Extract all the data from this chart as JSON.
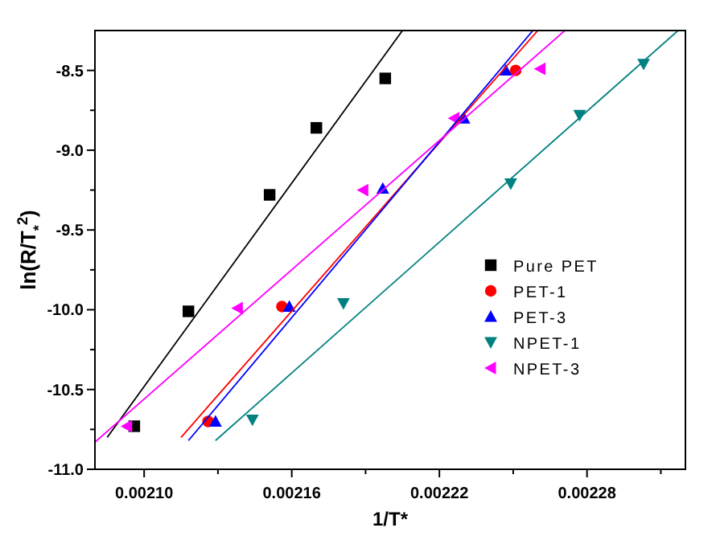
{
  "chart_data": {
    "type": "scatter",
    "xlabel": "1/T*",
    "ylabel": "ln(R/T$_{*}$$^{2}$)",
    "xlim": [
      0.00208,
      0.00232
    ],
    "ylim": [
      -11,
      -8.25
    ],
    "xticks": [
      {
        "value": 0.0021,
        "label": "0.00210"
      },
      {
        "value": 0.00213,
        "label": null
      },
      {
        "value": 0.00216,
        "label": "0.00216"
      },
      {
        "value": 0.00219,
        "label": null
      },
      {
        "value": 0.00222,
        "label": "0.00222"
      },
      {
        "value": 0.00225,
        "label": null
      },
      {
        "value": 0.00228,
        "label": "0.00228"
      },
      {
        "value": 0.00231,
        "label": null
      }
    ],
    "yticks": [
      {
        "value": -11,
        "label": "-11.0"
      },
      {
        "value": -10.75,
        "label": null
      },
      {
        "value": -10.5,
        "label": "-10.5"
      },
      {
        "value": -10.25,
        "label": null
      },
      {
        "value": -10,
        "label": "-10.0"
      },
      {
        "value": -9.75,
        "label": null
      },
      {
        "value": -9.5,
        "label": "-9.5"
      },
      {
        "value": -9.25,
        "label": null
      },
      {
        "value": -9,
        "label": "-9.0"
      },
      {
        "value": -8.75,
        "label": null
      },
      {
        "value": -8.5,
        "label": "-8.5"
      }
    ],
    "grid": false,
    "legend": "right",
    "series": [
      {
        "name": "Pure PET",
        "color": "#000000",
        "marker": "square",
        "x": [
          0.002096,
          0.002118,
          0.002151,
          0.00217,
          0.002198
        ],
        "values": [
          -10.73,
          -10.01,
          -9.28,
          -8.86,
          -8.55
        ]
      },
      {
        "name": "PET-1",
        "color": "#ff0000",
        "marker": "circle",
        "x": [
          0.002126,
          0.002156,
          0.002251
        ],
        "values": [
          -10.7,
          -9.98,
          -8.5
        ]
      },
      {
        "name": "PET-3",
        "color": "#0000ff",
        "marker": "triangle",
        "x": [
          0.002129,
          0.002159,
          0.002197,
          0.00223,
          0.002247
        ],
        "values": [
          -10.7,
          -9.98,
          -9.24,
          -8.8,
          -8.5
        ]
      },
      {
        "name": "NPET-1",
        "color": "#008080",
        "marker": "triangle-down",
        "x": [
          0.002144,
          0.002181,
          0.002249,
          0.002277,
          0.002303
        ],
        "values": [
          -10.69,
          -9.96,
          -9.21,
          -8.78,
          -8.46
        ]
      },
      {
        "name": "NPET-3",
        "color": "#ff00ff",
        "marker": "triangle-left",
        "x": [
          0.002093,
          0.002138,
          0.002189,
          0.002226,
          0.002261
        ],
        "values": [
          -10.73,
          -9.99,
          -9.25,
          -8.8,
          -8.49
        ]
      },
      {
        "type": "line",
        "color": "#000000",
        "marker": "none",
        "x": [
          0.002085,
          0.002205
        ],
        "values": [
          -10.8,
          -8.25
        ]
      },
      {
        "type": "line",
        "color": "#ff0000",
        "marker": "none",
        "x": [
          0.002115,
          0.00226
        ],
        "values": [
          -10.8,
          -8.25
        ]
      },
      {
        "type": "line",
        "color": "#0000ff",
        "marker": "none",
        "x": [
          0.002118,
          0.002258
        ],
        "values": [
          -10.82,
          -8.25
        ]
      },
      {
        "type": "line",
        "color": "#008080",
        "marker": "none",
        "x": [
          0.002129,
          0.002317
        ],
        "values": [
          -10.82,
          -8.25
        ]
      },
      {
        "type": "line",
        "color": "#ff00ff",
        "marker": "none",
        "x": [
          0.00208,
          0.002271
        ],
        "values": [
          -10.83,
          -8.25
        ]
      }
    ]
  }
}
